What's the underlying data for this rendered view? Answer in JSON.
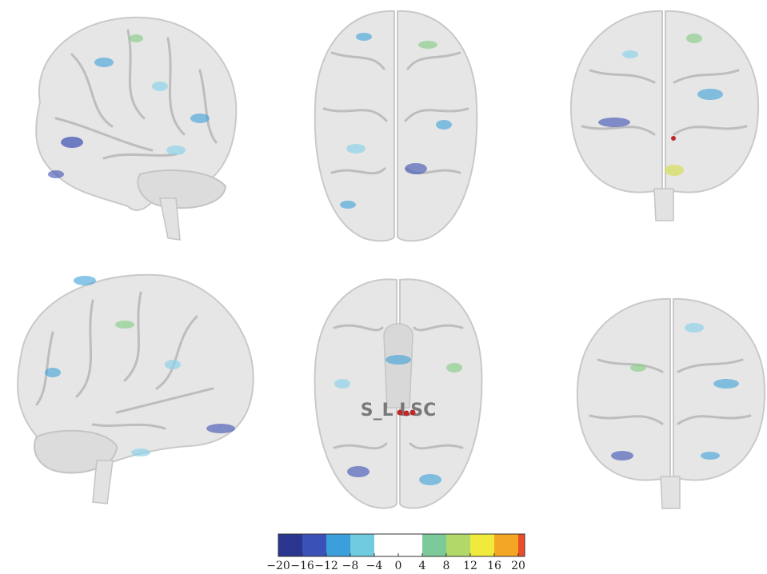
{
  "figure": {
    "views": [
      {
        "id": "left-lateral",
        "annotation": ""
      },
      {
        "id": "superior",
        "annotation": ""
      },
      {
        "id": "posterior",
        "annotation": ""
      },
      {
        "id": "right-lateral",
        "annotation": ""
      },
      {
        "id": "inferior",
        "annotation": "S_L  LSC"
      },
      {
        "id": "anterior",
        "annotation": ""
      }
    ],
    "colors": {
      "surface": "#e6e6e6",
      "sulcus": "#bdbdbd",
      "activation_strong_neg": "#3a4fb0",
      "activation_neg": "#3aa0d8",
      "activation_weak_neg": "#8fd3e8",
      "activation_pos": "#8fcf8f",
      "activation_strong_pos": "#d8e06a",
      "marker": "#c0282a"
    }
  },
  "colorbar": {
    "ticks": [
      "−20",
      "−16",
      "−12",
      "−8",
      "−4",
      "0",
      "4",
      "8",
      "12",
      "16",
      "20"
    ],
    "bins": [
      {
        "from": -20,
        "to": -16,
        "color": "#2a3590"
      },
      {
        "from": -16,
        "to": -12,
        "color": "#3a52b8"
      },
      {
        "from": -12,
        "to": -8,
        "color": "#3a9fdb"
      },
      {
        "from": -8,
        "to": -4,
        "color": "#6fcbe0"
      },
      {
        "from": -4,
        "to": 0,
        "color": "#ffffff"
      },
      {
        "from": 0,
        "to": 4,
        "color": "#ffffff"
      },
      {
        "from": 4,
        "to": 8,
        "color": "#7cc99a"
      },
      {
        "from": 8,
        "to": 12,
        "color": "#b2d86a"
      },
      {
        "from": 12,
        "to": 16,
        "color": "#f0ea3c"
      },
      {
        "from": 16,
        "to": 20,
        "color": "#f3a624"
      },
      {
        "from": 20,
        "to": 22,
        "color": "#ec4b2a"
      }
    ]
  }
}
